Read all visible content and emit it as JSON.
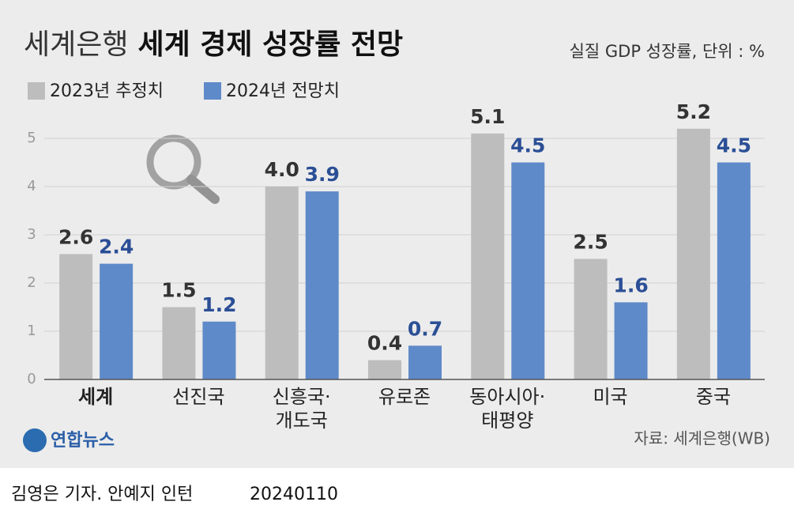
{
  "chart_data": {
    "type": "bar",
    "title_lead": "세계은행",
    "title": "세계 경제 성장률 전망",
    "subtitle": "실질 GDP 성장률, 단위 : %",
    "categories": [
      "세계",
      "선진국",
      "신흥국·\n개도국",
      "유로존",
      "동아시아·\n태평양",
      "미국",
      "중국"
    ],
    "series": [
      {
        "name": "2023년 추정치",
        "color": "#bdbdbd",
        "label_color": "#333333",
        "values": [
          2.6,
          1.5,
          4.0,
          0.4,
          5.1,
          2.5,
          5.2
        ],
        "value_labels": [
          "2.6",
          "1.5",
          "4.0",
          "0.4",
          "5.1",
          "2.5",
          "5.2"
        ]
      },
      {
        "name": "2024년 전망치",
        "color": "#5f8ac9",
        "label_color": "#2b4f96",
        "values": [
          2.4,
          1.2,
          3.9,
          0.7,
          4.5,
          1.6,
          4.5
        ],
        "value_labels": [
          "2.4",
          "1.2",
          "3.9",
          "0.7",
          "4.5",
          "1.6",
          "4.5"
        ]
      }
    ],
    "ylim": [
      0,
      5.5
    ],
    "yticks": [
      0,
      1,
      2,
      3,
      4,
      5
    ],
    "grid": true,
    "source": "자료: 세계은행(WB)",
    "logo": "연합뉴스",
    "credit": "김영은 기자. 안예지 인턴",
    "date": "20240110"
  }
}
